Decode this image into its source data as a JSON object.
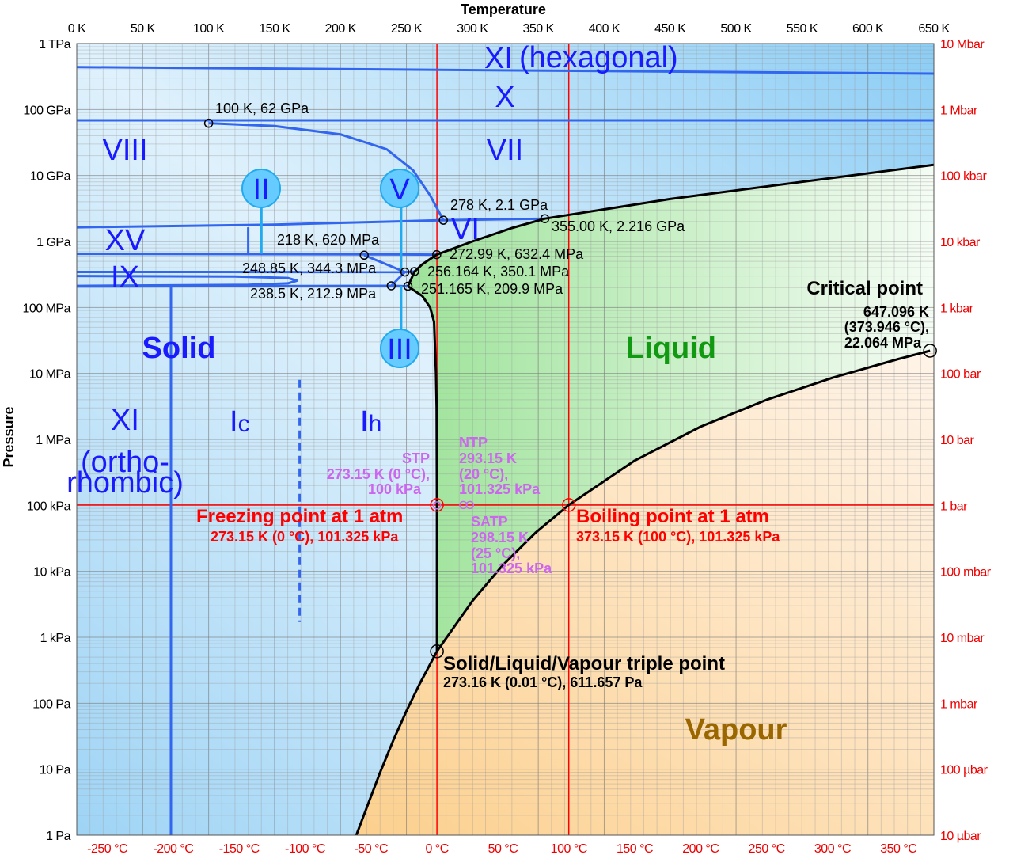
{
  "colors": {
    "solid_line": "#3366ee",
    "label_line": "#22aaee",
    "boundary": "#000000",
    "reference": "#ff0000",
    "standard": "#cc66ee",
    "solid_text": "#1a1aff",
    "liquid_text": "#119911",
    "vapour_text": "#996600"
  },
  "axes": {
    "top_title": "Temperature",
    "left_title": "Pressure",
    "top_ticks": [
      "0 K",
      "50 K",
      "100 K",
      "150 K",
      "200 K",
      "250 K",
      "300 K",
      "350 K",
      "400 K",
      "450 K",
      "500 K",
      "550 K",
      "600 K",
      "650 K"
    ],
    "bottom_ticks": [
      "-250 °C",
      "-200 °C",
      "-150 °C",
      "-100 °C",
      "-50 °C",
      "0 °C",
      "50 °C",
      "100 °C",
      "150 °C",
      "200 °C",
      "250 °C",
      "300 °C",
      "350 °C"
    ],
    "left_ticks": [
      "1 TPa",
      "100 GPa",
      "10 GPa",
      "1 GPa",
      "100 MPa",
      "10 MPa",
      "1 MPa",
      "100 kPa",
      "10 kPa",
      "1 kPa",
      "100 Pa",
      "10 Pa",
      "1 Pa"
    ],
    "right_ticks": [
      "10 Mbar",
      "1 Mbar",
      "100 kbar",
      "10 kbar",
      "1 kbar",
      "100 bar",
      "10 bar",
      "1 bar",
      "100 mbar",
      "10 mbar",
      "1 mbar",
      "100 µbar",
      "10 µbar"
    ],
    "x_range_K": [
      0,
      650
    ],
    "y_range_Pa": [
      1,
      1000000000000.0
    ],
    "y_scale": "log",
    "grid": true
  },
  "regions": {
    "solid": "Solid",
    "liquid": "Liquid",
    "vapour": "Vapour"
  },
  "phases": {
    "xi_hex": "XI",
    "hexagonal": "(hexagonal)",
    "x": "X",
    "vii": "VII",
    "viii": "VIII",
    "xv": "XV",
    "vi": "VI",
    "ix": "IX",
    "ii": "II",
    "v": "V",
    "iii": "III",
    "xi_orth": "XI",
    "ortho1": "(ortho-",
    "ortho2": "rhombic)",
    "ic": "I",
    "ic_sub": "c",
    "ih": "I",
    "ih_sub": "h"
  },
  "annotations": {
    "p100": "100 K, 62 GPa",
    "p278": "278 K, 2.1 GPa",
    "p355": "355.00 K, 2.216 GPa",
    "p218": "218 K, 620 MPa",
    "p27299": "272.99 K, 632.4 MPa",
    "p24885": "248.85 K, 344.3 MPa",
    "p256": "256.164 K, 350.1 MPa",
    "p2385": "238.5 K, 212.9 MPa",
    "p251": "251.165 K, 209.9 MPa",
    "critical_title": "Critical point",
    "critical_1": "647.096 K",
    "critical_2": "(373.946 °C),",
    "critical_3": "22.064 MPa",
    "stp_title": "STP",
    "stp_1": "273.15 K (0 °C),",
    "stp_2": "100 kPa",
    "ntp_title": "NTP",
    "ntp_1": "293.15 K",
    "ntp_2": "(20 °C),",
    "ntp_3": "101.325 kPa",
    "satp_title": "SATP",
    "satp_1": "298.15 K",
    "satp_2": "(25 °C),",
    "satp_3": "101.325 kPa",
    "freezing_title": "Freezing point at 1 atm",
    "freezing_1": "273.15 K (0 °C), 101.325 kPa",
    "boiling_title": "Boiling point at 1 atm",
    "boiling_1": "373.15 K (100 °C), 101.325 kPa",
    "triple_title": "Solid/Liquid/Vapour triple point",
    "triple_1": "273.16 K (0.01 °C), 611.657 Pa"
  },
  "curves": {
    "vapour_pressure": [
      [
        273.16,
        611.657
      ],
      [
        300,
        3537
      ],
      [
        323,
        12350
      ],
      [
        348,
        38600
      ],
      [
        373.15,
        101325
      ],
      [
        423,
        476000
      ],
      [
        473,
        1555000
      ],
      [
        523,
        3970000
      ],
      [
        573,
        8590000
      ],
      [
        623,
        16500000
      ],
      [
        647.096,
        22064000
      ]
    ],
    "sublimation": [
      [
        212,
        1
      ],
      [
        220,
        2.66
      ],
      [
        230,
        8.9
      ],
      [
        240,
        27.3
      ],
      [
        250,
        76
      ],
      [
        260,
        195.8
      ],
      [
        273.16,
        611.657
      ]
    ],
    "melting_ih": [
      [
        273.16,
        611.657
      ],
      [
        273.15,
        101325
      ],
      [
        272.9,
        3000000.0
      ],
      [
        272.4,
        10000000.0
      ],
      [
        271,
        60000000.0
      ],
      [
        268,
        100000000.0
      ],
      [
        262,
        150000000.0
      ],
      [
        256,
        180000000.0
      ],
      [
        251.165,
        209900000.0
      ]
    ],
    "melting_high": [
      [
        251.165,
        209900000.0
      ],
      [
        256.164,
        350100000.0
      ],
      [
        262,
        450000000.0
      ],
      [
        272.99,
        632400000.0
      ],
      [
        300,
        1000000000.0
      ],
      [
        330,
        1600000000.0
      ],
      [
        355,
        2216000000.0
      ],
      [
        450,
        4400000000.0
      ],
      [
        550,
        8000000000.0
      ],
      [
        650,
        14500000000.0
      ]
    ],
    "xi_x": [
      [
        0,
        440000000000.0
      ],
      [
        650,
        350000000000.0
      ]
    ],
    "x_vii": [
      [
        0,
        68600000000.0
      ],
      [
        650,
        68600000000.0
      ]
    ],
    "viii_vii": [
      [
        100,
        62000000000.0
      ],
      [
        150,
        56000000000.0
      ],
      [
        200,
        42000000000.0
      ],
      [
        235,
        25000000000.0
      ],
      [
        255,
        12000000000.0
      ],
      [
        268,
        5000000000.0
      ],
      [
        278,
        2100000000.0
      ]
    ],
    "vi_top": [
      [
        0,
        1640000000.0
      ],
      [
        150,
        1800000000.0
      ],
      [
        278,
        2100000000.0
      ],
      [
        355,
        2216000000.0
      ]
    ],
    "xv_line": [
      [
        0,
        650000000.0
      ],
      [
        218,
        640000000.0
      ],
      [
        272.99,
        632400000.0
      ]
    ],
    "xv_vert": [
      [
        130,
        1640000000.0
      ],
      [
        130,
        650000000.0
      ]
    ],
    "ii_v": [
      [
        218,
        620000000.0
      ],
      [
        248.85,
        344300000.0
      ],
      [
        256.164,
        350100000.0
      ]
    ],
    "v_iii": [
      [
        248.85,
        344300000.0
      ],
      [
        238.5,
        212900000.0
      ]
    ],
    "iii_top": [
      [
        238.5,
        212900000.0
      ],
      [
        251.165,
        209900000.0
      ]
    ],
    "ix_top": [
      [
        0,
        345000000.0
      ],
      [
        248.85,
        344300000.0
      ]
    ],
    "ix_loop": [
      [
        0,
        300000000.0
      ],
      [
        120,
        295000000.0
      ],
      [
        160,
        280000000.0
      ],
      [
        167,
        255000000.0
      ],
      [
        160,
        232000000.0
      ],
      [
        130,
        220000000.0
      ],
      [
        0,
        212000000.0
      ]
    ],
    "ix_bottom": [
      [
        0,
        208000000.0
      ],
      [
        238.5,
        212900000.0
      ]
    ],
    "xi_ih": [
      [
        71.4,
        208000000.0
      ],
      [
        71.4,
        1
      ]
    ],
    "ic_ih": [
      [
        169,
        8000000.0
      ],
      [
        169,
        1700.0
      ]
    ],
    "ii_stem": [
      [
        140,
        3300000000.0
      ],
      [
        140,
        650000000.0
      ]
    ],
    "v_stem": [
      [
        246,
        3300000000.0
      ],
      [
        246,
        344000000.0
      ]
    ],
    "iii_stem": [
      [
        246,
        212000000.0
      ],
      [
        246,
        45000000.0
      ]
    ]
  },
  "points": {
    "phase": [
      [
        100,
        62000000000.0
      ],
      [
        278,
        2100000000.0
      ],
      [
        355,
        2216000000.0
      ],
      [
        218,
        620000000.0
      ],
      [
        272.99,
        632400000.0
      ],
      [
        248.85,
        344300000.0
      ],
      [
        256.164,
        350100000.0
      ],
      [
        238.5,
        212900000.0
      ],
      [
        251.165,
        209900000.0
      ]
    ],
    "triple": [
      273.16,
      611.657
    ],
    "critical": [
      647.096,
      22064000
    ],
    "freezing": [
      273.15,
      101325
    ],
    "boiling": [
      373.15,
      101325
    ],
    "stp": [
      273.15,
      100000
    ],
    "ntp": [
      293.15,
      101325
    ],
    "satp": [
      298.15,
      101325
    ]
  }
}
